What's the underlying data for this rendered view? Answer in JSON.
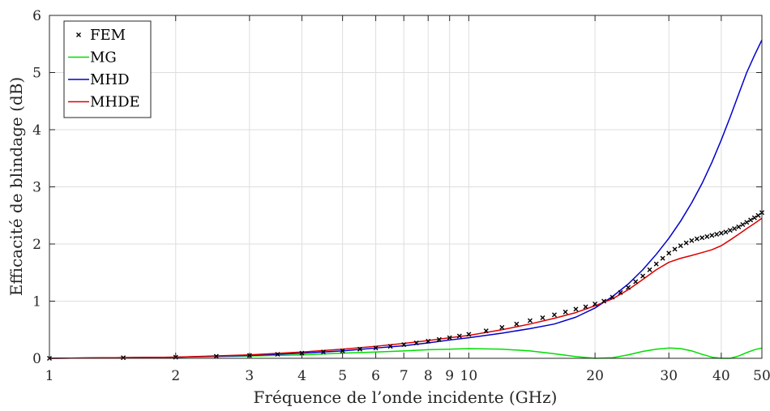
{
  "chart_data": {
    "type": "line",
    "title": "",
    "xlabel": "Fréquence de l’onde incidente (GHz)",
    "ylabel": "Efficacité de blindage (dB)",
    "xscale": "log",
    "xlim": [
      1,
      50
    ],
    "ylim": [
      0,
      6
    ],
    "grid": true,
    "legend_position": "top-left",
    "x_ticks": [
      1,
      2,
      3,
      4,
      5,
      6,
      7,
      8,
      9,
      10,
      20,
      30,
      40,
      50
    ],
    "x_tick_labels": [
      "1",
      "2",
      "3",
      "4",
      "5",
      "6",
      "7",
      "8",
      "9",
      "10",
      "20",
      "30",
      "40",
      "50"
    ],
    "y_ticks": [
      0,
      1,
      2,
      3,
      4,
      5,
      6
    ],
    "y_tick_labels": [
      "0",
      "1",
      "2",
      "3",
      "4",
      "5",
      "6"
    ],
    "series": [
      {
        "name": "FEM",
        "style": "marker-x",
        "color": "#000000",
        "x": [
          1,
          1.5,
          2,
          2.5,
          3,
          3.5,
          4,
          4.5,
          5,
          5.5,
          6,
          6.5,
          7,
          7.5,
          8,
          8.5,
          9,
          9.5,
          10,
          11,
          12,
          13,
          14,
          15,
          16,
          17,
          18,
          19,
          20,
          21,
          22,
          23,
          24,
          25,
          26,
          27,
          28,
          29,
          30,
          31,
          32,
          33,
          34,
          35,
          36,
          37,
          38,
          39,
          40,
          41,
          42,
          43,
          44,
          45,
          46,
          47,
          48,
          49,
          50
        ],
        "values": [
          0.0,
          0.01,
          0.02,
          0.035,
          0.05,
          0.07,
          0.09,
          0.11,
          0.13,
          0.16,
          0.18,
          0.21,
          0.24,
          0.27,
          0.3,
          0.33,
          0.36,
          0.39,
          0.42,
          0.48,
          0.54,
          0.6,
          0.66,
          0.71,
          0.76,
          0.81,
          0.86,
          0.9,
          0.95,
          1.0,
          1.07,
          1.15,
          1.24,
          1.34,
          1.44,
          1.55,
          1.65,
          1.75,
          1.84,
          1.91,
          1.97,
          2.02,
          2.06,
          2.09,
          2.11,
          2.13,
          2.15,
          2.17,
          2.19,
          2.21,
          2.24,
          2.27,
          2.3,
          2.34,
          2.38,
          2.42,
          2.46,
          2.5,
          2.55
        ]
      },
      {
        "name": "MG",
        "style": "line",
        "color": "#00dd00",
        "x": [
          1,
          2,
          3,
          4,
          5,
          6,
          7,
          8,
          9,
          10,
          12,
          14,
          16,
          18,
          20,
          22,
          24,
          26,
          28,
          30,
          32,
          34,
          36,
          38,
          40,
          42,
          44,
          46,
          48,
          50
        ],
        "values": [
          0.0,
          0.02,
          0.04,
          0.06,
          0.09,
          0.11,
          0.13,
          0.15,
          0.16,
          0.17,
          0.16,
          0.13,
          0.08,
          0.03,
          0.0,
          0.01,
          0.06,
          0.12,
          0.16,
          0.18,
          0.17,
          0.13,
          0.07,
          0.02,
          0.0,
          0.0,
          0.04,
          0.1,
          0.15,
          0.18
        ]
      },
      {
        "name": "MHD",
        "style": "line",
        "color": "#0000cc",
        "x": [
          1,
          2,
          3,
          4,
          5,
          6,
          7,
          8,
          9,
          10,
          12,
          14,
          16,
          18,
          20,
          22,
          24,
          26,
          28,
          30,
          32,
          34,
          36,
          38,
          40,
          42,
          44,
          46,
          48,
          50
        ],
        "values": [
          0.0,
          0.02,
          0.05,
          0.09,
          0.13,
          0.18,
          0.22,
          0.27,
          0.32,
          0.36,
          0.44,
          0.52,
          0.6,
          0.72,
          0.88,
          1.08,
          1.3,
          1.55,
          1.82,
          2.1,
          2.4,
          2.72,
          3.06,
          3.43,
          3.82,
          4.22,
          4.62,
          5.0,
          5.3,
          5.57
        ]
      },
      {
        "name": "MHDE",
        "style": "line",
        "color": "#dd0000",
        "x": [
          1,
          2,
          3,
          4,
          5,
          6,
          7,
          8,
          9,
          10,
          12,
          14,
          16,
          18,
          20,
          22,
          24,
          26,
          28,
          30,
          32,
          34,
          36,
          38,
          40,
          42,
          44,
          46,
          48,
          50
        ],
        "values": [
          0.0,
          0.02,
          0.06,
          0.11,
          0.16,
          0.21,
          0.26,
          0.31,
          0.36,
          0.4,
          0.5,
          0.6,
          0.7,
          0.8,
          0.92,
          1.04,
          1.2,
          1.38,
          1.55,
          1.68,
          1.75,
          1.8,
          1.85,
          1.9,
          1.97,
          2.07,
          2.17,
          2.27,
          2.36,
          2.45
        ]
      }
    ]
  }
}
